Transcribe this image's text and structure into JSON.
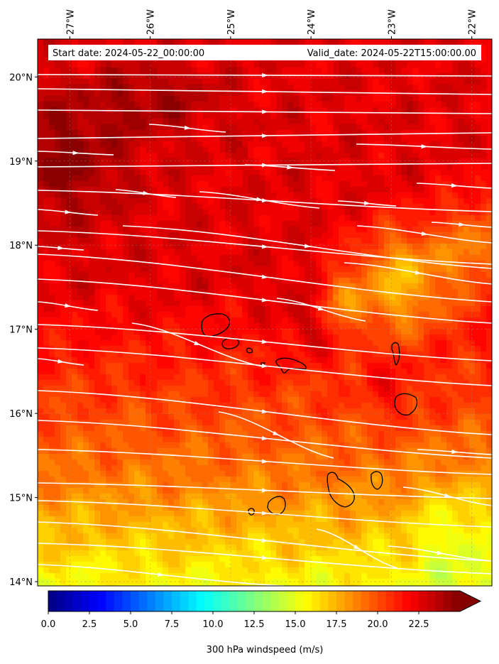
{
  "chart_data": {
    "type": "heatmap",
    "variable_label": "300 hPa windspeed (m/s)",
    "start_date_label": "Start date: 2024-05-22_00:00:00",
    "valid_date_label": "Valid_date: 2024-05-22T15:00:00.00",
    "lon_range": [
      -27.4,
      -21.75
    ],
    "lat_range": [
      13.95,
      20.45
    ],
    "lon_ticks": [
      -27,
      -26,
      -25,
      -24,
      -23,
      -22
    ],
    "lon_tick_labels": [
      "27°W",
      "26°W",
      "25°W",
      "24°W",
      "23°W",
      "22°W"
    ],
    "lat_ticks": [
      14,
      15,
      16,
      17,
      18,
      19,
      20
    ],
    "lat_tick_labels": [
      "14°N",
      "15°N",
      "16°N",
      "17°N",
      "18°N",
      "19°N",
      "20°N"
    ],
    "colorbar_range": [
      0,
      25
    ],
    "colorbar_ticks": [
      0,
      2.5,
      5,
      7.5,
      10,
      12.5,
      15,
      17.5,
      20,
      22.5
    ],
    "colorbar_tick_labels": [
      "0.0",
      "2.5",
      "5.0",
      "7.5",
      "10.0",
      "12.5",
      "15.0",
      "17.5",
      "20.0",
      "22.5"
    ],
    "colorbar_extend": "max",
    "colormap": "jet",
    "grid": true
  }
}
